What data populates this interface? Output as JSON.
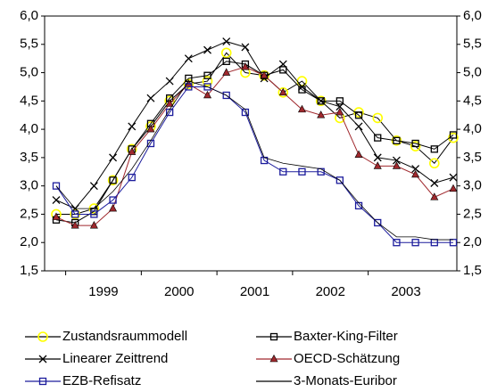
{
  "chart_data": {
    "type": "line",
    "categories": [
      null,
      null,
      null,
      null,
      null,
      null,
      null,
      null,
      null,
      null,
      null,
      null,
      null,
      null,
      null,
      null,
      null,
      null,
      null,
      null,
      null,
      null
    ],
    "year_labels": [
      "1999",
      "2000",
      "2001",
      "2002",
      "2003"
    ],
    "ylim": [
      1.5,
      6.0
    ],
    "yticks": [
      {
        "value": 1.5,
        "label": "1,5"
      },
      {
        "value": 2.0,
        "label": "2,0"
      },
      {
        "value": 2.5,
        "label": "2,5"
      },
      {
        "value": 3.0,
        "label": "3,0"
      },
      {
        "value": 3.5,
        "label": "3,5"
      },
      {
        "value": 4.0,
        "label": "4,0"
      },
      {
        "value": 4.5,
        "label": "4,5"
      },
      {
        "value": 5.0,
        "label": "5,0"
      },
      {
        "value": 5.5,
        "label": "5,5"
      },
      {
        "value": 6.0,
        "label": "6,0"
      }
    ],
    "series": [
      {
        "name": "Zustandsraummodell",
        "color": "#ffff00",
        "marker": "circle",
        "values": [
          2.5,
          2.5,
          2.6,
          3.1,
          3.65,
          4.05,
          4.5,
          4.8,
          4.85,
          5.35,
          5.0,
          4.95,
          4.65,
          4.85,
          4.5,
          4.2,
          4.3,
          4.2,
          3.8,
          3.7,
          3.4,
          3.85
        ]
      },
      {
        "name": "Baxter-King-Filter",
        "color": "#000000",
        "marker": "square",
        "values": [
          2.4,
          2.35,
          2.55,
          3.1,
          3.65,
          4.1,
          4.55,
          4.9,
          4.95,
          5.2,
          5.15,
          4.95,
          5.05,
          4.7,
          4.5,
          4.5,
          4.25,
          3.85,
          3.8,
          3.75,
          3.65,
          3.9
        ]
      },
      {
        "name": "Linearer Zeittrend",
        "color": "#000000",
        "marker": "x",
        "values": [
          2.75,
          2.6,
          3.0,
          3.5,
          4.05,
          4.55,
          4.85,
          5.25,
          5.4,
          5.55,
          5.45,
          4.9,
          5.15,
          4.75,
          4.5,
          4.4,
          4.05,
          3.5,
          3.45,
          3.3,
          3.05,
          3.15
        ]
      },
      {
        "name": "OECD-Schätzung",
        "color": "#a0282d",
        "marker": "triangle",
        "values": [
          2.45,
          2.3,
          2.3,
          2.6,
          3.6,
          4.0,
          4.45,
          4.8,
          4.6,
          5.0,
          5.1,
          4.95,
          4.65,
          4.35,
          4.25,
          4.3,
          3.55,
          3.35,
          3.35,
          3.2,
          2.8,
          2.95
        ]
      },
      {
        "name": "EZB-Refisatz",
        "color": "#1c1c9c",
        "marker": "square",
        "values": [
          3.0,
          2.5,
          2.5,
          2.75,
          3.15,
          3.75,
          4.3,
          4.75,
          4.75,
          4.6,
          4.3,
          3.45,
          3.25,
          3.25,
          3.25,
          3.1,
          2.65,
          2.35,
          2.0,
          2.0,
          2.0,
          2.0
        ]
      },
      {
        "name": "3-Monats-Euribor",
        "color": "#000000",
        "marker": "none",
        "values": [
          3.0,
          2.6,
          2.6,
          2.9,
          3.3,
          3.8,
          4.35,
          4.85,
          4.75,
          4.6,
          4.35,
          3.5,
          3.4,
          3.35,
          3.3,
          3.1,
          2.7,
          2.35,
          2.1,
          2.1,
          2.05,
          2.05
        ]
      }
    ]
  }
}
